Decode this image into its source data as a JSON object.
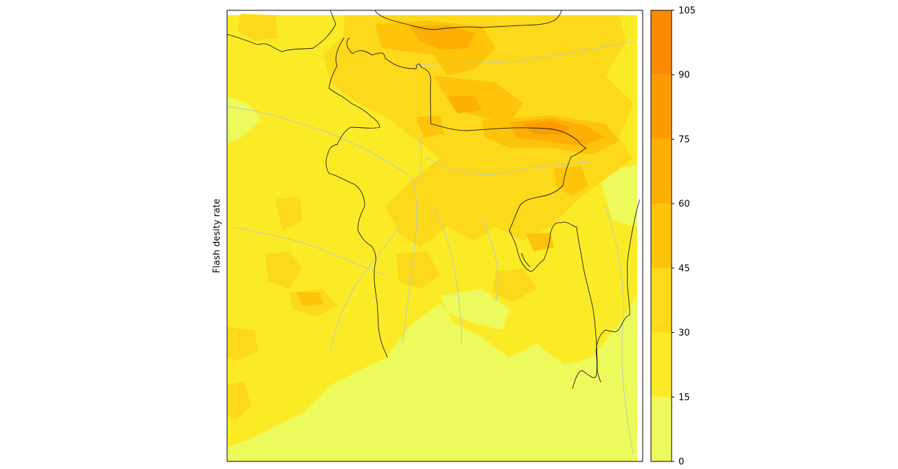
{
  "map": {
    "ylabel": "Flash desity rate",
    "colors": {
      "band_1": "#edfa5c",
      "band_2": "#fbeb26",
      "band_3": "#fdd91c",
      "band_4": "#fdc40a",
      "band_5": "#fdaf05",
      "band_6": "#fc9c02",
      "band_7": "#fc8a00",
      "border_line": "#1a1a1a",
      "river_line": "#b9c9c9"
    }
  },
  "colorbar": {
    "ticks": [
      "0",
      "15",
      "30",
      "45",
      "60",
      "75",
      "90",
      "105"
    ],
    "levels": [
      0,
      15,
      30,
      45,
      60,
      75,
      90,
      105
    ]
  }
}
